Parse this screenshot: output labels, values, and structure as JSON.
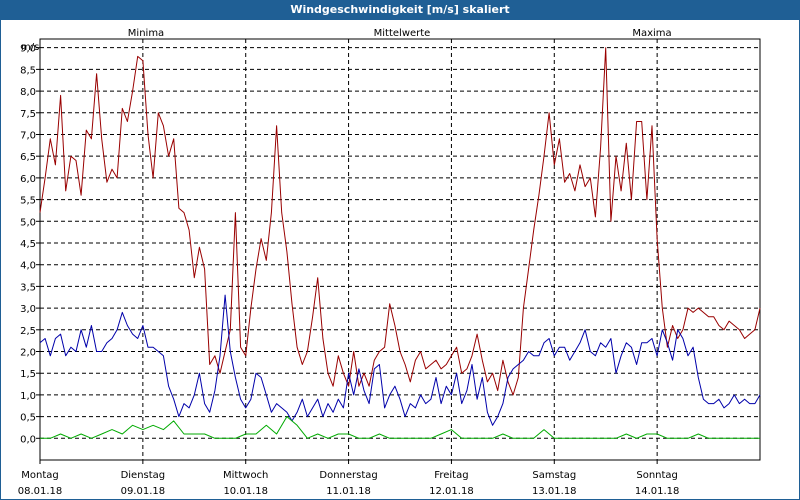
{
  "window_title": "Windgeschwindigkeit [m/s] skaliert",
  "colors": {
    "min": "#00aa00",
    "mean": "#0000aa",
    "max": "#990000",
    "title_bg": "#1f5f95"
  },
  "chart_data": {
    "type": "line",
    "title": "Windgeschwindigkeit [m/s] skaliert",
    "ylabel": "m/s",
    "xlabel": "",
    "ylim": [
      -0.5,
      9.2
    ],
    "yticks": [
      0.0,
      0.5,
      1.0,
      1.5,
      2.0,
      2.5,
      3.0,
      3.5,
      4.0,
      4.5,
      5.0,
      5.5,
      6.0,
      6.5,
      7.0,
      7.5,
      8.0,
      8.5,
      9.0
    ],
    "ytick_labels": [
      "0,0",
      "0,5",
      "1,0",
      "1,5",
      "2,0",
      "2,5",
      "3,0",
      "3,5",
      "4,0",
      "4,5",
      "5,0",
      "5,5",
      "6,0",
      "6,5",
      "7,0",
      "7,5",
      "8,0",
      "8,5",
      "9,0"
    ],
    "xlim": [
      0,
      7
    ],
    "grid": true,
    "legend": {
      "min": "Minima",
      "mean": "Mittelwerte",
      "max": "Maxima"
    },
    "days": [
      {
        "day": "Montag",
        "date": "08.01.18"
      },
      {
        "day": "Dienstag",
        "date": "09.01.18"
      },
      {
        "day": "Mittwoch",
        "date": "10.01.18"
      },
      {
        "day": "Donnerstag",
        "date": "11.01.18"
      },
      {
        "day": "Freitag",
        "date": "12.01.18"
      },
      {
        "day": "Samstag",
        "date": "13.01.18"
      },
      {
        "day": "Sonntag",
        "date": "14.01.18"
      }
    ],
    "series": [
      {
        "name": "Maxima",
        "key": "max",
        "x": [
          0,
          0.05,
          0.1,
          0.15,
          0.2,
          0.25,
          0.3,
          0.35,
          0.4,
          0.45,
          0.5,
          0.55,
          0.6,
          0.65,
          0.7,
          0.75,
          0.8,
          0.85,
          0.9,
          0.95,
          1.0,
          1.05,
          1.1,
          1.15,
          1.2,
          1.25,
          1.3,
          1.35,
          1.4,
          1.45,
          1.5,
          1.55,
          1.6,
          1.65,
          1.7,
          1.75,
          1.8,
          1.85,
          1.9,
          1.95,
          2.0,
          2.05,
          2.1,
          2.15,
          2.2,
          2.25,
          2.3,
          2.35,
          2.4,
          2.45,
          2.5,
          2.55,
          2.6,
          2.65,
          2.7,
          2.75,
          2.8,
          2.85,
          2.9,
          2.95,
          3.0,
          3.05,
          3.1,
          3.15,
          3.2,
          3.25,
          3.3,
          3.35,
          3.4,
          3.45,
          3.5,
          3.55,
          3.6,
          3.65,
          3.7,
          3.75,
          3.8,
          3.85,
          3.9,
          3.95,
          4.0,
          4.05,
          4.1,
          4.15,
          4.2,
          4.25,
          4.3,
          4.35,
          4.4,
          4.45,
          4.5,
          4.55,
          4.6,
          4.65,
          4.7,
          4.75,
          4.8,
          4.85,
          4.9,
          4.95,
          5.0,
          5.05,
          5.1,
          5.15,
          5.2,
          5.25,
          5.3,
          5.35,
          5.4,
          5.45,
          5.5,
          5.55,
          5.6,
          5.65,
          5.7,
          5.75,
          5.8,
          5.85,
          5.9,
          5.95,
          6.0,
          6.05,
          6.1,
          6.15,
          6.2,
          6.25,
          6.3,
          6.35,
          6.4,
          6.45,
          6.5,
          6.55,
          6.6,
          6.65,
          6.7,
          6.75,
          6.8,
          6.85,
          6.9,
          6.95,
          7.0
        ],
        "values": [
          5.2,
          6.0,
          6.9,
          6.3,
          7.9,
          5.7,
          6.5,
          6.4,
          5.6,
          7.1,
          6.9,
          8.4,
          6.9,
          5.9,
          6.2,
          6.0,
          7.6,
          7.3,
          8.0,
          8.8,
          8.7,
          7.0,
          6.0,
          7.5,
          7.2,
          6.5,
          6.9,
          5.3,
          5.2,
          4.8,
          3.7,
          4.4,
          3.9,
          1.7,
          1.9,
          1.5,
          2.0,
          2.5,
          5.2,
          2.1,
          1.9,
          3.0,
          3.9,
          4.6,
          4.1,
          5.2,
          7.2,
          5.2,
          4.3,
          3.1,
          2.1,
          1.7,
          2.0,
          2.8,
          3.7,
          2.3,
          1.5,
          1.2,
          1.9,
          1.5,
          1.2,
          2.0,
          1.2,
          1.5,
          1.2,
          1.8,
          2.0,
          2.1,
          3.1,
          2.6,
          2.0,
          1.7,
          1.3,
          1.8,
          2.0,
          1.6,
          1.7,
          1.8,
          1.6,
          1.7,
          1.9,
          2.1,
          1.5,
          1.6,
          1.9,
          2.4,
          1.8,
          1.3,
          1.5,
          1.1,
          1.8,
          1.3,
          1.0,
          1.4,
          3.0,
          3.9,
          4.8,
          5.6,
          6.5,
          7.5,
          6.3,
          6.9,
          5.9,
          6.1,
          5.7,
          6.3,
          5.8,
          6.0,
          5.1,
          6.7,
          9.0,
          5.0,
          6.5,
          5.7,
          6.8,
          5.5,
          7.3,
          7.3,
          5.5,
          7.2,
          4.6,
          3.0,
          2.1,
          2.6,
          2.3,
          2.5,
          3.0,
          2.9,
          3.0,
          2.9,
          2.8,
          2.8,
          2.6,
          2.5,
          2.7,
          2.6,
          2.5,
          2.3,
          2.4,
          2.5,
          3.0
        ]
      },
      {
        "name": "Mittelwerte",
        "key": "mean",
        "x": [
          0,
          0.05,
          0.1,
          0.15,
          0.2,
          0.25,
          0.3,
          0.35,
          0.4,
          0.45,
          0.5,
          0.55,
          0.6,
          0.65,
          0.7,
          0.75,
          0.8,
          0.85,
          0.9,
          0.95,
          1.0,
          1.05,
          1.1,
          1.15,
          1.2,
          1.25,
          1.3,
          1.35,
          1.4,
          1.45,
          1.5,
          1.55,
          1.6,
          1.65,
          1.7,
          1.75,
          1.8,
          1.85,
          1.9,
          1.95,
          2.0,
          2.05,
          2.1,
          2.15,
          2.2,
          2.25,
          2.3,
          2.35,
          2.4,
          2.45,
          2.5,
          2.55,
          2.6,
          2.65,
          2.7,
          2.75,
          2.8,
          2.85,
          2.9,
          2.95,
          3.0,
          3.05,
          3.1,
          3.15,
          3.2,
          3.25,
          3.3,
          3.35,
          3.4,
          3.45,
          3.5,
          3.55,
          3.6,
          3.65,
          3.7,
          3.75,
          3.8,
          3.85,
          3.9,
          3.95,
          4.0,
          4.05,
          4.1,
          4.15,
          4.2,
          4.25,
          4.3,
          4.35,
          4.4,
          4.45,
          4.5,
          4.55,
          4.6,
          4.65,
          4.7,
          4.75,
          4.8,
          4.85,
          4.9,
          4.95,
          5.0,
          5.05,
          5.1,
          5.15,
          5.2,
          5.25,
          5.3,
          5.35,
          5.4,
          5.45,
          5.5,
          5.55,
          5.6,
          5.65,
          5.7,
          5.75,
          5.8,
          5.85,
          5.9,
          5.95,
          6.0,
          6.05,
          6.1,
          6.15,
          6.2,
          6.25,
          6.3,
          6.35,
          6.4,
          6.45,
          6.5,
          6.55,
          6.6,
          6.65,
          6.7,
          6.75,
          6.8,
          6.85,
          6.9,
          6.95,
          7.0
        ],
        "values": [
          2.2,
          2.3,
          1.9,
          2.3,
          2.4,
          1.9,
          2.1,
          2.0,
          2.5,
          2.1,
          2.6,
          2.0,
          2.0,
          2.2,
          2.3,
          2.5,
          2.9,
          2.6,
          2.4,
          2.3,
          2.6,
          2.1,
          2.1,
          2.0,
          1.9,
          1.2,
          0.9,
          0.5,
          0.8,
          0.7,
          1.0,
          1.5,
          0.8,
          0.6,
          1.1,
          1.9,
          3.3,
          2.0,
          1.4,
          0.9,
          0.7,
          0.9,
          1.5,
          1.4,
          1.0,
          0.6,
          0.8,
          0.7,
          0.6,
          0.4,
          0.6,
          0.9,
          0.5,
          0.7,
          0.9,
          0.5,
          0.8,
          0.6,
          0.9,
          0.7,
          1.5,
          1.0,
          1.6,
          1.1,
          0.8,
          1.6,
          1.7,
          0.7,
          1.0,
          1.2,
          0.9,
          0.5,
          0.8,
          0.7,
          1.0,
          0.8,
          0.9,
          1.4,
          0.8,
          1.2,
          1.0,
          1.5,
          0.8,
          1.1,
          1.7,
          0.9,
          1.4,
          0.6,
          0.3,
          0.5,
          0.8,
          1.4,
          1.6,
          1.7,
          1.8,
          2.0,
          1.9,
          1.9,
          2.2,
          2.3,
          1.9,
          2.1,
          2.1,
          1.8,
          2.0,
          2.2,
          2.5,
          2.0,
          1.9,
          2.2,
          2.1,
          2.3,
          1.5,
          1.9,
          2.2,
          2.1,
          1.7,
          2.2,
          2.2,
          2.3,
          1.9,
          2.5,
          2.2,
          1.8,
          2.5,
          2.3,
          1.9,
          2.1,
          1.4,
          0.9,
          0.8,
          0.8,
          0.9,
          0.7,
          0.8,
          1.0,
          0.8,
          0.9,
          0.8,
          0.8,
          1.0
        ]
      },
      {
        "name": "Minima",
        "key": "min",
        "x": [
          0,
          0.1,
          0.2,
          0.3,
          0.4,
          0.5,
          0.6,
          0.7,
          0.8,
          0.9,
          1.0,
          1.1,
          1.2,
          1.3,
          1.4,
          1.5,
          1.6,
          1.7,
          1.8,
          1.9,
          2.0,
          2.1,
          2.2,
          2.3,
          2.4,
          2.5,
          2.6,
          2.7,
          2.8,
          2.9,
          3.0,
          3.1,
          3.2,
          3.3,
          3.4,
          3.5,
          3.6,
          3.7,
          3.8,
          3.9,
          4.0,
          4.1,
          4.2,
          4.3,
          4.4,
          4.5,
          4.6,
          4.7,
          4.8,
          4.9,
          5.0,
          5.1,
          5.2,
          5.3,
          5.4,
          5.5,
          5.6,
          5.7,
          5.8,
          5.9,
          6.0,
          6.1,
          6.2,
          6.3,
          6.4,
          6.5,
          6.6,
          6.7,
          6.8,
          6.9,
          7.0
        ],
        "values": [
          0.0,
          0.0,
          0.1,
          0.0,
          0.1,
          0.0,
          0.1,
          0.2,
          0.1,
          0.3,
          0.2,
          0.3,
          0.2,
          0.4,
          0.1,
          0.1,
          0.1,
          0.0,
          0.0,
          0.0,
          0.1,
          0.1,
          0.3,
          0.1,
          0.5,
          0.3,
          0.0,
          0.1,
          0.0,
          0.1,
          0.1,
          0.0,
          0.0,
          0.1,
          0.0,
          0.0,
          0.0,
          0.0,
          0.0,
          0.1,
          0.2,
          0.0,
          0.0,
          0.0,
          0.0,
          0.1,
          0.0,
          0.0,
          0.0,
          0.2,
          0.0,
          0.0,
          0.0,
          0.0,
          0.0,
          0.0,
          0.0,
          0.1,
          0.0,
          0.1,
          0.1,
          0.0,
          0.0,
          0.0,
          0.1,
          0.0,
          0.0,
          0.0,
          0.0,
          0.0,
          0.0
        ]
      }
    ]
  }
}
